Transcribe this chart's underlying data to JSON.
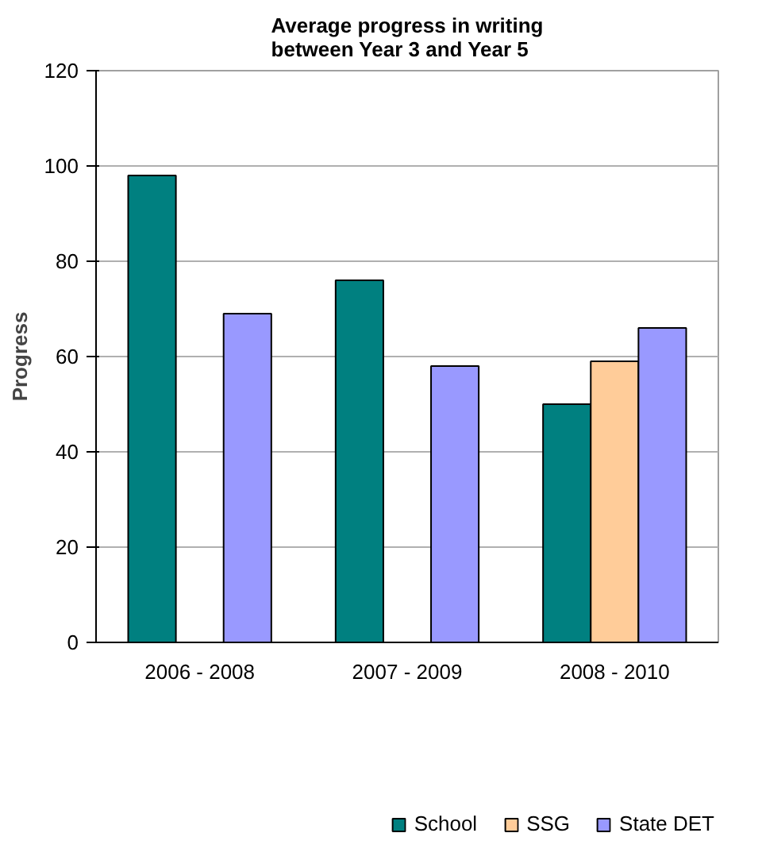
{
  "chart_data": {
    "type": "bar",
    "title": "Average progress in writing\nbetween Year 3 and Year 5",
    "ylabel": "Progress",
    "categories": [
      "2006 - 2008",
      "2007 - 2009",
      "2008 - 2010"
    ],
    "series": [
      {
        "name": "School",
        "color": "#008080",
        "values": [
          98,
          76,
          50
        ]
      },
      {
        "name": "SSG",
        "color": "#ffcc99",
        "values": [
          null,
          null,
          59
        ]
      },
      {
        "name": "State DET",
        "color": "#9999ff",
        "values": [
          69,
          58,
          66
        ]
      }
    ],
    "ylim": [
      0,
      120
    ],
    "yticks": [
      0,
      20,
      40,
      60,
      80,
      100,
      120
    ],
    "grid": "y",
    "legend": "bottom"
  }
}
